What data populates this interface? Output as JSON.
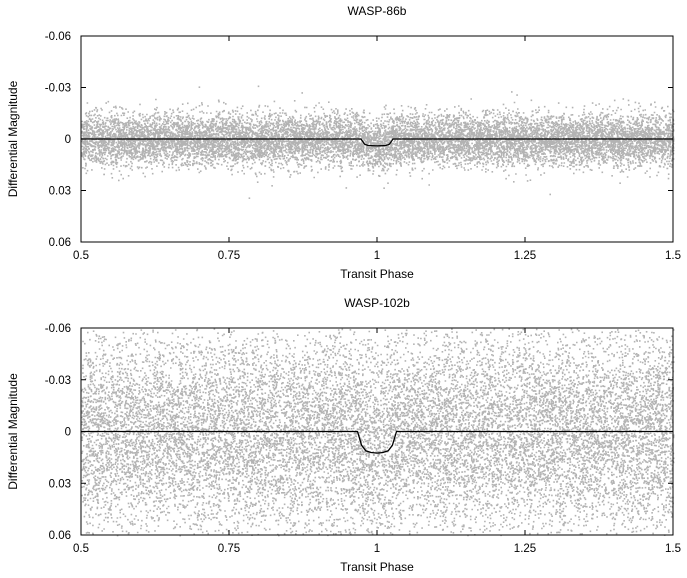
{
  "chart_data": [
    {
      "type": "scatter",
      "title": "WASP-86b",
      "xlabel": "Transit Phase",
      "ylabel": "Differential Magnitude",
      "xlim": [
        0.5,
        1.5
      ],
      "ylim": [
        0.06,
        -0.06
      ],
      "y_inverted": true,
      "xticks": [
        "0.5",
        "0.75",
        "1",
        "1.25",
        "1.5"
      ],
      "xtick_values": [
        0.5,
        0.75,
        1.0,
        1.25,
        1.5
      ],
      "yticks": [
        "-0.06",
        "-0.03",
        "0",
        "0.03",
        "0.06"
      ],
      "ytick_values": [
        -0.06,
        -0.03,
        0.0,
        0.03,
        0.06
      ],
      "grid": false,
      "scatter_color": "#b3b3b3",
      "model_color": "#000000",
      "scatter": {
        "description": "dense gray photometric points",
        "center_mag": 0.0,
        "std_mag": 0.0075,
        "typical_range": [
          -0.02,
          0.02
        ],
        "extreme_range": [
          -0.037,
          0.039
        ]
      },
      "model": {
        "name": "transit model",
        "out_of_transit_mag": 0.0,
        "transit_center_phase": 1.0,
        "transit_depth_mag": 0.004,
        "transit_x": [
          0.5,
          0.973,
          0.979,
          0.985,
          1.0,
          1.015,
          1.021,
          1.027,
          1.5
        ],
        "transit_y": [
          0.0,
          0.0,
          0.003,
          0.0038,
          0.004,
          0.0038,
          0.003,
          0.0,
          0.0
        ]
      }
    },
    {
      "type": "scatter",
      "title": "WASP-102b",
      "xlabel": "Transit Phase",
      "ylabel": "Differential Magnitude",
      "xlim": [
        0.5,
        1.5
      ],
      "ylim": [
        0.06,
        -0.06
      ],
      "y_inverted": true,
      "xticks": [
        "0.5",
        "0.75",
        "1",
        "1.25",
        "1.5"
      ],
      "xtick_values": [
        0.5,
        0.75,
        1.0,
        1.25,
        1.5
      ],
      "yticks": [
        "-0.06",
        "-0.03",
        "0",
        "0.03",
        "0.06"
      ],
      "ytick_values": [
        -0.06,
        -0.03,
        0.0,
        0.03,
        0.06
      ],
      "grid": false,
      "scatter_color": "#b3b3b3",
      "model_color": "#000000",
      "scatter": {
        "description": "dense gray photometric points filling most of the panel",
        "center_mag": 0.0,
        "std_mag": 0.03,
        "typical_range": [
          -0.06,
          0.06
        ],
        "extreme_range": [
          -0.06,
          0.06
        ]
      },
      "model": {
        "name": "transit model",
        "out_of_transit_mag": 0.0,
        "transit_center_phase": 1.0,
        "transit_depth_mag": 0.0125,
        "transit_x": [
          0.5,
          0.967,
          0.974,
          0.981,
          0.99,
          1.0,
          1.01,
          1.019,
          1.026,
          1.033,
          1.5
        ],
        "transit_y": [
          0.0,
          0.0,
          0.008,
          0.0112,
          0.0122,
          0.0125,
          0.0122,
          0.0112,
          0.008,
          0.0,
          0.0
        ]
      }
    }
  ]
}
